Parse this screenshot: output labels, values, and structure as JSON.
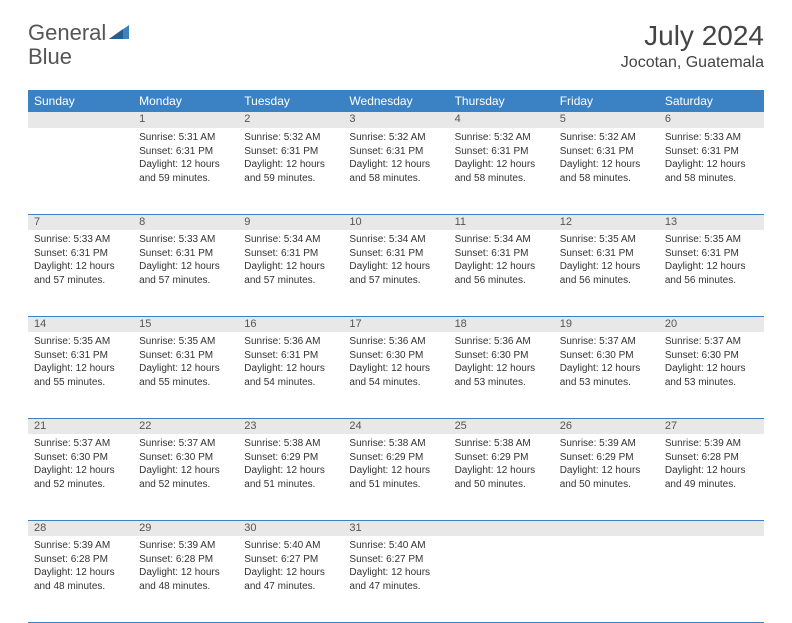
{
  "brand": {
    "text1": "General",
    "text2": "Blue",
    "logo_color": "#3b82c4"
  },
  "title": "July 2024",
  "location": "Jocotan, Guatemala",
  "colors": {
    "header_bg": "#3b82c4",
    "header_fg": "#ffffff",
    "daynum_bg": "#e8e8e8",
    "rule": "#3b82c4",
    "text": "#333333"
  },
  "day_headers": [
    "Sunday",
    "Monday",
    "Tuesday",
    "Wednesday",
    "Thursday",
    "Friday",
    "Saturday"
  ],
  "weeks": [
    {
      "nums": [
        "",
        "1",
        "2",
        "3",
        "4",
        "5",
        "6"
      ],
      "cells": [
        null,
        {
          "sunrise": "Sunrise: 5:31 AM",
          "sunset": "Sunset: 6:31 PM",
          "day1": "Daylight: 12 hours",
          "day2": "and 59 minutes."
        },
        {
          "sunrise": "Sunrise: 5:32 AM",
          "sunset": "Sunset: 6:31 PM",
          "day1": "Daylight: 12 hours",
          "day2": "and 59 minutes."
        },
        {
          "sunrise": "Sunrise: 5:32 AM",
          "sunset": "Sunset: 6:31 PM",
          "day1": "Daylight: 12 hours",
          "day2": "and 58 minutes."
        },
        {
          "sunrise": "Sunrise: 5:32 AM",
          "sunset": "Sunset: 6:31 PM",
          "day1": "Daylight: 12 hours",
          "day2": "and 58 minutes."
        },
        {
          "sunrise": "Sunrise: 5:32 AM",
          "sunset": "Sunset: 6:31 PM",
          "day1": "Daylight: 12 hours",
          "day2": "and 58 minutes."
        },
        {
          "sunrise": "Sunrise: 5:33 AM",
          "sunset": "Sunset: 6:31 PM",
          "day1": "Daylight: 12 hours",
          "day2": "and 58 minutes."
        }
      ]
    },
    {
      "nums": [
        "7",
        "8",
        "9",
        "10",
        "11",
        "12",
        "13"
      ],
      "cells": [
        {
          "sunrise": "Sunrise: 5:33 AM",
          "sunset": "Sunset: 6:31 PM",
          "day1": "Daylight: 12 hours",
          "day2": "and 57 minutes."
        },
        {
          "sunrise": "Sunrise: 5:33 AM",
          "sunset": "Sunset: 6:31 PM",
          "day1": "Daylight: 12 hours",
          "day2": "and 57 minutes."
        },
        {
          "sunrise": "Sunrise: 5:34 AM",
          "sunset": "Sunset: 6:31 PM",
          "day1": "Daylight: 12 hours",
          "day2": "and 57 minutes."
        },
        {
          "sunrise": "Sunrise: 5:34 AM",
          "sunset": "Sunset: 6:31 PM",
          "day1": "Daylight: 12 hours",
          "day2": "and 57 minutes."
        },
        {
          "sunrise": "Sunrise: 5:34 AM",
          "sunset": "Sunset: 6:31 PM",
          "day1": "Daylight: 12 hours",
          "day2": "and 56 minutes."
        },
        {
          "sunrise": "Sunrise: 5:35 AM",
          "sunset": "Sunset: 6:31 PM",
          "day1": "Daylight: 12 hours",
          "day2": "and 56 minutes."
        },
        {
          "sunrise": "Sunrise: 5:35 AM",
          "sunset": "Sunset: 6:31 PM",
          "day1": "Daylight: 12 hours",
          "day2": "and 56 minutes."
        }
      ]
    },
    {
      "nums": [
        "14",
        "15",
        "16",
        "17",
        "18",
        "19",
        "20"
      ],
      "cells": [
        {
          "sunrise": "Sunrise: 5:35 AM",
          "sunset": "Sunset: 6:31 PM",
          "day1": "Daylight: 12 hours",
          "day2": "and 55 minutes."
        },
        {
          "sunrise": "Sunrise: 5:35 AM",
          "sunset": "Sunset: 6:31 PM",
          "day1": "Daylight: 12 hours",
          "day2": "and 55 minutes."
        },
        {
          "sunrise": "Sunrise: 5:36 AM",
          "sunset": "Sunset: 6:31 PM",
          "day1": "Daylight: 12 hours",
          "day2": "and 54 minutes."
        },
        {
          "sunrise": "Sunrise: 5:36 AM",
          "sunset": "Sunset: 6:30 PM",
          "day1": "Daylight: 12 hours",
          "day2": "and 54 minutes."
        },
        {
          "sunrise": "Sunrise: 5:36 AM",
          "sunset": "Sunset: 6:30 PM",
          "day1": "Daylight: 12 hours",
          "day2": "and 53 minutes."
        },
        {
          "sunrise": "Sunrise: 5:37 AM",
          "sunset": "Sunset: 6:30 PM",
          "day1": "Daylight: 12 hours",
          "day2": "and 53 minutes."
        },
        {
          "sunrise": "Sunrise: 5:37 AM",
          "sunset": "Sunset: 6:30 PM",
          "day1": "Daylight: 12 hours",
          "day2": "and 53 minutes."
        }
      ]
    },
    {
      "nums": [
        "21",
        "22",
        "23",
        "24",
        "25",
        "26",
        "27"
      ],
      "cells": [
        {
          "sunrise": "Sunrise: 5:37 AM",
          "sunset": "Sunset: 6:30 PM",
          "day1": "Daylight: 12 hours",
          "day2": "and 52 minutes."
        },
        {
          "sunrise": "Sunrise: 5:37 AM",
          "sunset": "Sunset: 6:30 PM",
          "day1": "Daylight: 12 hours",
          "day2": "and 52 minutes."
        },
        {
          "sunrise": "Sunrise: 5:38 AM",
          "sunset": "Sunset: 6:29 PM",
          "day1": "Daylight: 12 hours",
          "day2": "and 51 minutes."
        },
        {
          "sunrise": "Sunrise: 5:38 AM",
          "sunset": "Sunset: 6:29 PM",
          "day1": "Daylight: 12 hours",
          "day2": "and 51 minutes."
        },
        {
          "sunrise": "Sunrise: 5:38 AM",
          "sunset": "Sunset: 6:29 PM",
          "day1": "Daylight: 12 hours",
          "day2": "and 50 minutes."
        },
        {
          "sunrise": "Sunrise: 5:39 AM",
          "sunset": "Sunset: 6:29 PM",
          "day1": "Daylight: 12 hours",
          "day2": "and 50 minutes."
        },
        {
          "sunrise": "Sunrise: 5:39 AM",
          "sunset": "Sunset: 6:28 PM",
          "day1": "Daylight: 12 hours",
          "day2": "and 49 minutes."
        }
      ]
    },
    {
      "nums": [
        "28",
        "29",
        "30",
        "31",
        "",
        "",
        ""
      ],
      "cells": [
        {
          "sunrise": "Sunrise: 5:39 AM",
          "sunset": "Sunset: 6:28 PM",
          "day1": "Daylight: 12 hours",
          "day2": "and 48 minutes."
        },
        {
          "sunrise": "Sunrise: 5:39 AM",
          "sunset": "Sunset: 6:28 PM",
          "day1": "Daylight: 12 hours",
          "day2": "and 48 minutes."
        },
        {
          "sunrise": "Sunrise: 5:40 AM",
          "sunset": "Sunset: 6:27 PM",
          "day1": "Daylight: 12 hours",
          "day2": "and 47 minutes."
        },
        {
          "sunrise": "Sunrise: 5:40 AM",
          "sunset": "Sunset: 6:27 PM",
          "day1": "Daylight: 12 hours",
          "day2": "and 47 minutes."
        },
        null,
        null,
        null
      ]
    }
  ]
}
